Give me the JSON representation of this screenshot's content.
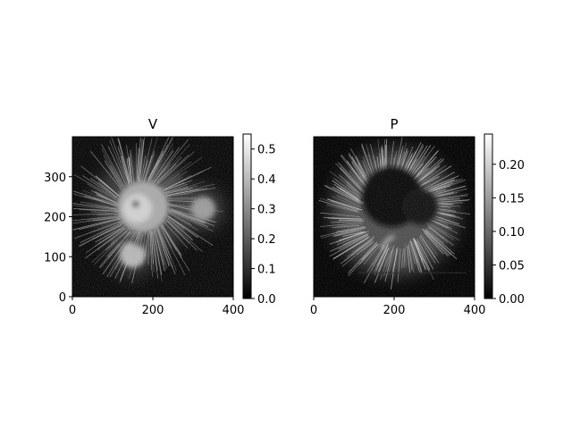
{
  "chart_data": [
    {
      "type": "heatmap",
      "title": "V",
      "colormap": "gray",
      "xlim": [
        0,
        400
      ],
      "ylim": [
        0,
        400
      ],
      "x_ticks": [
        {
          "value": 0,
          "label": "0"
        },
        {
          "value": 200,
          "label": "200"
        },
        {
          "value": 400,
          "label": "400"
        }
      ],
      "y_ticks": [
        {
          "value": 0,
          "label": "0"
        },
        {
          "value": 100,
          "label": "100"
        },
        {
          "value": 200,
          "label": "200"
        },
        {
          "value": 300,
          "label": "300"
        }
      ],
      "colorbar": {
        "range": [
          0,
          0.55
        ],
        "ticks": [
          {
            "value": 0.0,
            "label": "0.0"
          },
          {
            "value": 0.1,
            "label": "0.1"
          },
          {
            "value": 0.2,
            "label": "0.2"
          },
          {
            "value": 0.3,
            "label": "0.3"
          },
          {
            "value": 0.4,
            "label": "0.4"
          },
          {
            "value": 0.5,
            "label": "0.5"
          }
        ]
      },
      "features": {
        "main_spot": {
          "cx": 175,
          "cy": 225,
          "r": 65
        },
        "secondary_spot": {
          "cx": 150,
          "cy": 105,
          "r": 32
        },
        "small_spot": {
          "cx": 325,
          "cy": 220,
          "r": 30
        },
        "halo_radius": 150
      }
    },
    {
      "type": "heatmap",
      "title": "P",
      "colormap": "gray",
      "xlim": [
        0,
        400
      ],
      "ylim": [
        0,
        400
      ],
      "x_ticks": [
        {
          "value": 0,
          "label": "0"
        },
        {
          "value": 200,
          "label": "200"
        },
        {
          "value": 400,
          "label": "400"
        }
      ],
      "y_ticks": [],
      "colorbar": {
        "range": [
          0,
          0.245
        ],
        "ticks": [
          {
            "value": 0.0,
            "label": "0.00"
          },
          {
            "value": 0.05,
            "label": "0.05"
          },
          {
            "value": 0.1,
            "label": "0.10"
          },
          {
            "value": 0.15,
            "label": "0.15"
          },
          {
            "value": 0.2,
            "label": "0.20"
          }
        ]
      },
      "features": {
        "bright_ring": {
          "cx": 200,
          "cy": 210,
          "r_inner": 85,
          "r_outer": 170
        },
        "dark_core": {
          "cx": 195,
          "cy": 250,
          "r": 75
        },
        "horizontal_line_y": 60
      }
    }
  ]
}
